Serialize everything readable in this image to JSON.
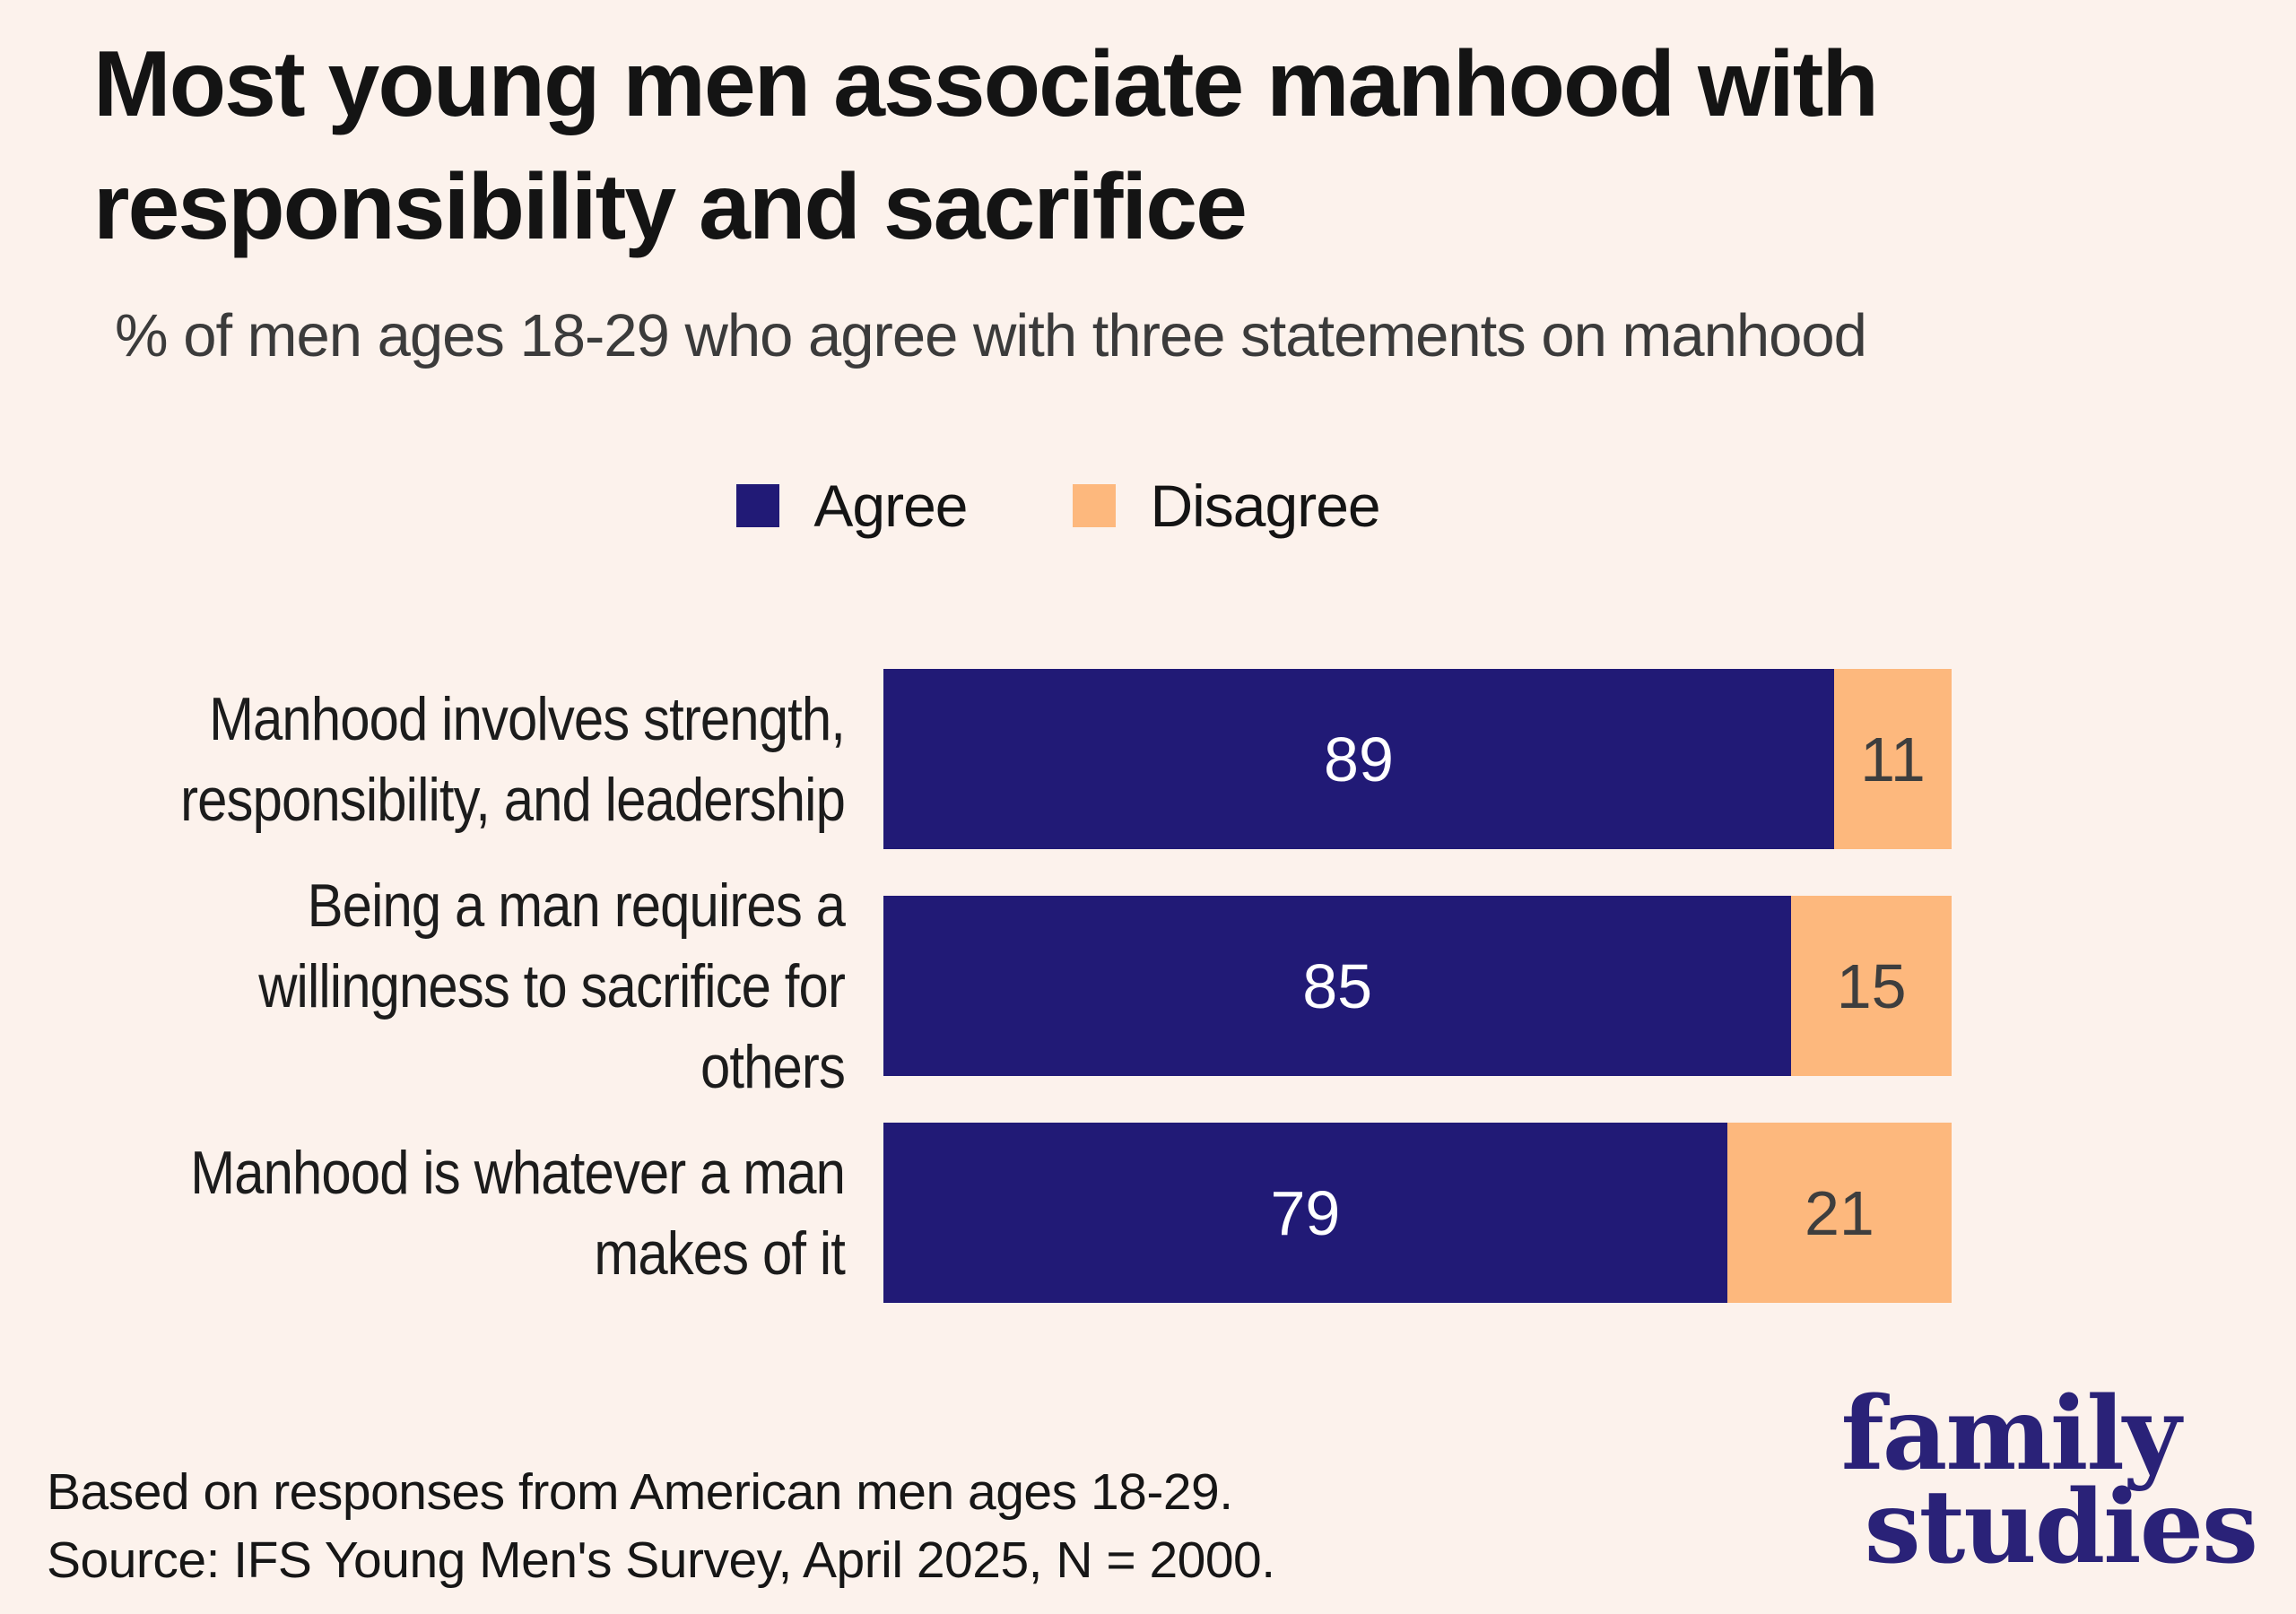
{
  "title_lines": [
    "Most young men associate manhood with",
    "responsibility and sacrifice"
  ],
  "subtitle": "% of men ages 18-29 who agree with three statements on manhood",
  "rows": [
    {
      "label_lines": [
        "Manhood involves strength,",
        "responsibility, and leadership"
      ]
    },
    {
      "label_lines": [
        "Being a man requires a",
        "willingness to sacrifice for",
        "others"
      ]
    },
    {
      "label_lines": [
        "Manhood is whatever a man",
        "makes of it"
      ]
    }
  ],
  "footer": {
    "line1": "Based on responses from American men ages 18-29.",
    "line2": "Source: IFS Young Men's Survey, April 2025, N = 2000."
  },
  "logo": {
    "line1": "family",
    "line2": "studies"
  },
  "colors": {
    "background": "#fcf2ec",
    "title_text": "#141414",
    "subtitle_text": "#3b3b3b",
    "agree_value_text": "#ffffff",
    "disagree_value_text": "#3e3e3e",
    "logo": "#2a2278"
  },
  "chart_data": {
    "type": "bar",
    "orientation": "horizontal",
    "stacked": true,
    "title": "Most young men associate manhood with responsibility and sacrifice",
    "subtitle": "% of men ages 18-29 who agree with three statements on manhood",
    "categories": [
      "Manhood involves strength, responsibility, and leadership",
      "Being a man requires a willingness to sacrifice for others",
      "Manhood is whatever a man makes of it"
    ],
    "series": [
      {
        "name": "Agree",
        "values": [
          89,
          85,
          79
        ]
      },
      {
        "name": "Disagree",
        "values": [
          11,
          15,
          21
        ]
      }
    ],
    "xlim": [
      0,
      100
    ],
    "grid": false,
    "legend_position": "top-center",
    "colors": {
      "agree": "#211a76",
      "disagree": "#fdb87d"
    }
  }
}
